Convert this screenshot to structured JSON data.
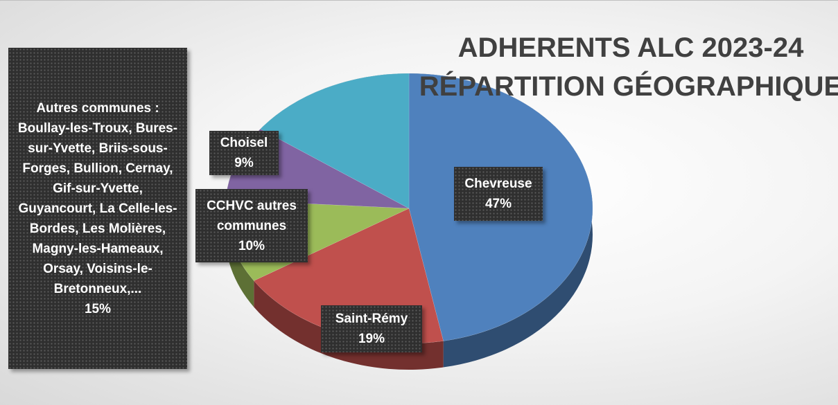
{
  "chart_data": {
    "type": "pie",
    "title": "ADHERENTS ALC 2023-24",
    "subtitle": "RÉPARTITION GÉOGRAPHIQUE",
    "categories": [
      "Chevreuse",
      "Saint-Rémy",
      "CCHVC autres communes",
      "Choisel",
      "Autres communes : Boullay-les-Troux, Bures-sur-Yvette, Briis-sous-Forges, Bullion, Cernay, Gif-sur-Yvette, Guyancourt, La Celle-les-Bordes, Les Molières, Magny-les-Hameaux, Orsay, Voisins-le-Bretonneux,..."
    ],
    "values": [
      47,
      19,
      10,
      9,
      15
    ],
    "value_labels": [
      "47%",
      "19%",
      "10%",
      "9%",
      "15%"
    ],
    "colors": [
      "#4f81bd",
      "#c0504d",
      "#9bbb59",
      "#8064a2",
      "#4bacc6"
    ]
  }
}
